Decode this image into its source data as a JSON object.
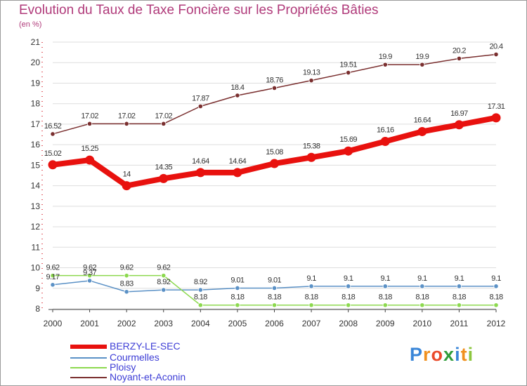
{
  "chart_data": {
    "type": "line",
    "title": "Evolution du Taux de Taxe Foncière sur les Propriétés Bâties",
    "subtitle": "(en %)",
    "x": [
      "2000",
      "2001",
      "2002",
      "2003",
      "2004",
      "2005",
      "2006",
      "2007",
      "2008",
      "2009",
      "2010",
      "2011",
      "2012"
    ],
    "ylim": [
      8,
      21
    ],
    "yticks": [
      "8",
      "9",
      "10",
      "11",
      "12",
      "13",
      "14",
      "15",
      "16",
      "17",
      "18",
      "19",
      "20",
      "21"
    ],
    "grid": "horizontal",
    "series": [
      {
        "name": "BERZY-LE-SEC",
        "color": "#e8110e",
        "values": [
          15.02,
          15.25,
          14,
          14.35,
          14.64,
          14.64,
          15.08,
          15.38,
          15.69,
          16.16,
          16.64,
          16.97,
          17.31
        ],
        "labels": [
          "15.02",
          "15.25",
          "14",
          "14.35",
          "14.64",
          "14.64",
          "15.08",
          "15.38",
          "15.69",
          "16.16",
          "16.64",
          "16.97",
          "17.31"
        ]
      },
      {
        "name": "Courmelles",
        "color": "#5b91c6",
        "values": [
          9.17,
          9.37,
          8.83,
          8.92,
          8.92,
          9.01,
          9.01,
          9.1,
          9.1,
          9.1,
          9.1,
          9.1,
          9.1
        ],
        "labels": [
          "9.17",
          "9.37",
          "8.83",
          "8.92",
          "8.92",
          "9.01",
          "9.01",
          "9.1",
          "9.1",
          "9.1",
          "9.1",
          "9.1",
          "9.1"
        ]
      },
      {
        "name": "Ploisy",
        "color": "#8cd94e",
        "values": [
          9.62,
          9.62,
          9.62,
          9.62,
          8.18,
          8.18,
          8.18,
          8.18,
          8.18,
          8.18,
          8.18,
          8.18,
          8.18
        ],
        "labels": [
          "9.62",
          "9.62",
          "9.62",
          "9.62",
          "8.18",
          "8.18",
          "8.18",
          "8.18",
          "8.18",
          "8.18",
          "8.18",
          "8.18",
          "8.18"
        ]
      },
      {
        "name": "Noyant-et-Aconin",
        "color": "#7a2f2f",
        "values": [
          16.52,
          17.02,
          17.02,
          17.02,
          17.87,
          18.4,
          18.76,
          19.13,
          19.51,
          19.9,
          19.9,
          20.2,
          20.4
        ],
        "labels": [
          "16.52",
          "17.02",
          "17.02",
          "17.02",
          "17.87",
          "18.4",
          "18.76",
          "19.13",
          "19.51",
          "19.9",
          "19.9",
          "20.2",
          "20.4"
        ]
      }
    ]
  },
  "logo": {
    "letters": [
      "P",
      "r",
      "o",
      "x",
      "i",
      "t",
      "i"
    ],
    "colors": [
      "#3a86d8",
      "#f0901e",
      "#ea4a2a",
      "#2f9c3a",
      "#3a86d8",
      "#f0901e",
      "#8cc63e"
    ]
  }
}
